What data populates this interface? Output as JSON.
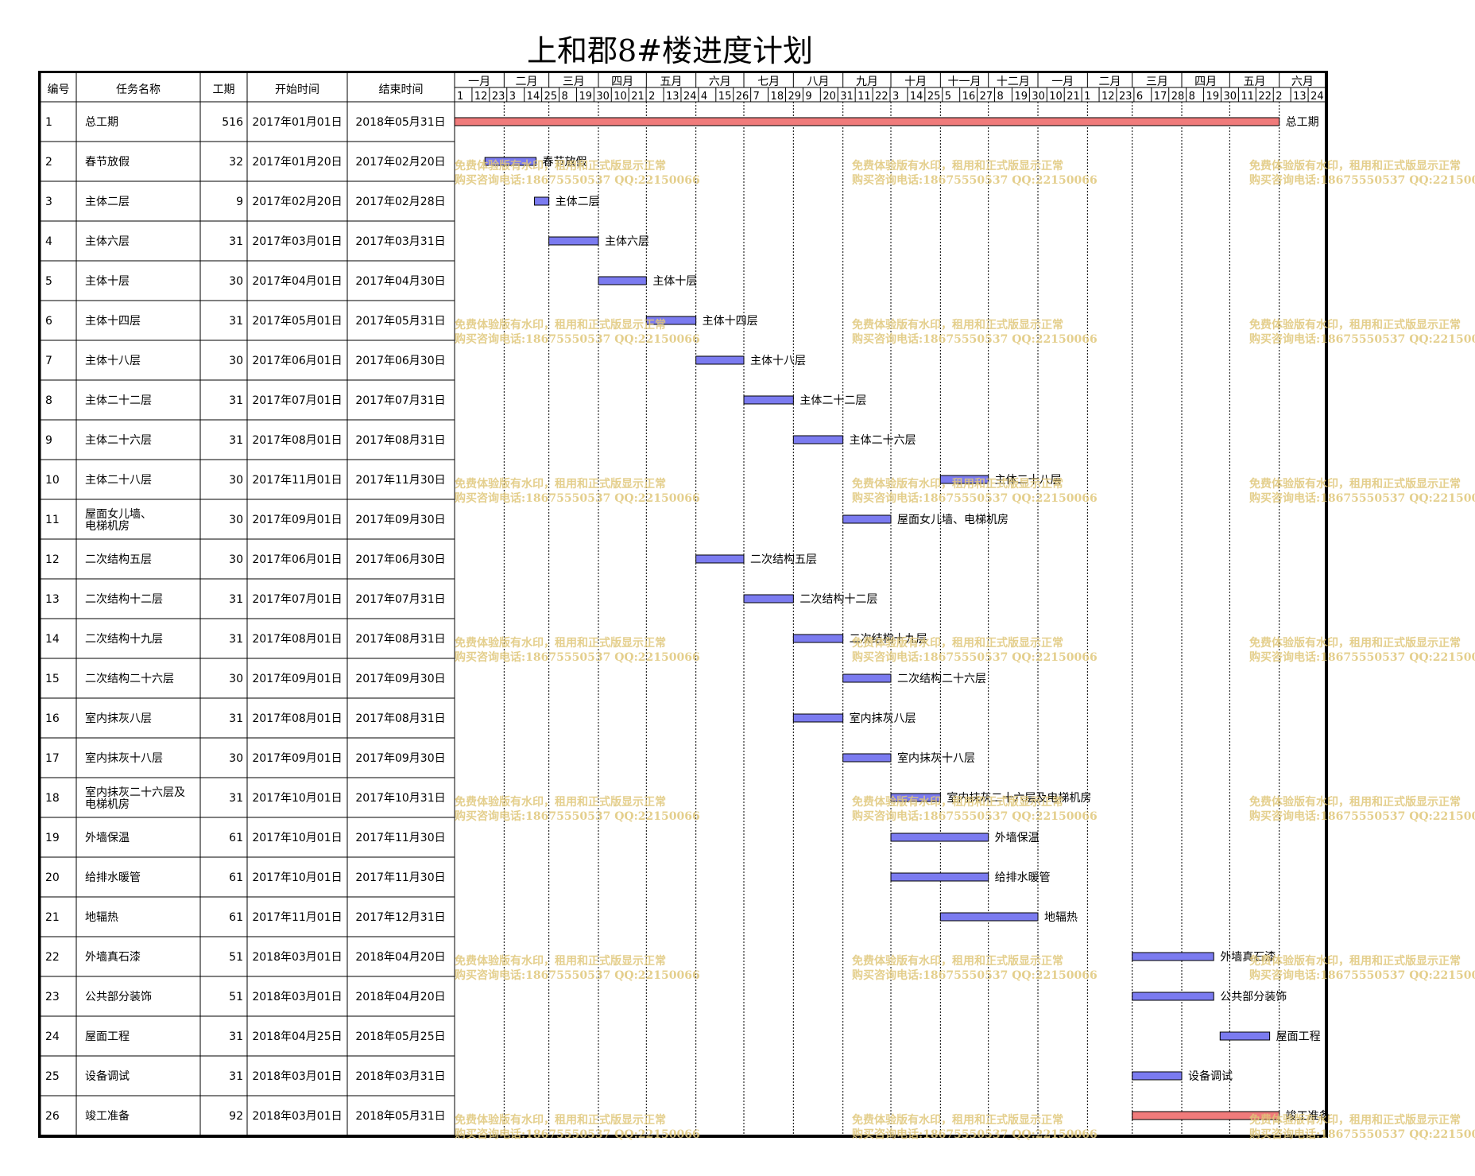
{
  "title": "上和郡8#楼进度计划",
  "table_headers": {
    "id": "编号",
    "name": "任务名称",
    "duration": "工期",
    "start": "开始时间",
    "end": "结束时间"
  },
  "timeline": {
    "months": [
      "一月",
      "二月",
      "三月",
      "四月",
      "五月",
      "六月",
      "七月",
      "八月",
      "九月",
      "十月",
      "十一月",
      "十二月",
      "一月",
      "二月",
      "三月",
      "四月",
      "五月",
      "六月"
    ],
    "month_starts": [
      "2017-01-01",
      "2017-02-01",
      "2017-03-01",
      "2017-04-01",
      "2017-05-01",
      "2017-06-01",
      "2017-07-01",
      "2017-08-01",
      "2017-09-01",
      "2017-10-01",
      "2017-11-01",
      "2017-12-01",
      "2018-01-01",
      "2018-02-01",
      "2018-03-01",
      "2018-04-01",
      "2018-05-01",
      "2018-06-01"
    ],
    "day_ticks": [
      "1",
      "12",
      "23",
      "3",
      "14",
      "25",
      "8",
      "19",
      "30",
      "10",
      "21",
      "2",
      "13",
      "24",
      "4",
      "15",
      "26",
      "7",
      "18",
      "29",
      "9",
      "20",
      "31",
      "11",
      "22",
      "3",
      "14",
      "25",
      "5",
      "16",
      "27",
      "8",
      "19",
      "30",
      "10",
      "21",
      "1",
      "12",
      "23",
      "6",
      "17",
      "28",
      "8",
      "19",
      "30",
      "11",
      "22",
      "2",
      "13",
      "24"
    ],
    "range": [
      "2017-01-01",
      "2018-06-30"
    ]
  },
  "watermark": {
    "line1": "免费体验版有水印，租用和正式版显示正常",
    "line2": "购买咨询电话:18675550537 QQ:22150066"
  },
  "colors": {
    "normal_bar": "#7b7bf0",
    "critical_bar": "#f07b7b",
    "grid": "#000000",
    "watermark": "#e0c77a"
  },
  "chart_data": {
    "type": "gantt",
    "tasks": [
      {
        "id": "1",
        "name": "总工期",
        "duration": "516",
        "start": "2017年01月01日",
        "end": "2018年05月31日",
        "s": "2017-01-01",
        "e": "2018-05-31",
        "critical": true
      },
      {
        "id": "2",
        "name": "春节放假",
        "duration": "32",
        "start": "2017年01月20日",
        "end": "2017年02月20日",
        "s": "2017-01-20",
        "e": "2017-02-20",
        "critical": false
      },
      {
        "id": "3",
        "name": "主体二层",
        "duration": "9",
        "start": "2017年02月20日",
        "end": "2017年02月28日",
        "s": "2017-02-20",
        "e": "2017-02-28",
        "critical": false
      },
      {
        "id": "4",
        "name": "主体六层",
        "duration": "31",
        "start": "2017年03月01日",
        "end": "2017年03月31日",
        "s": "2017-03-01",
        "e": "2017-03-31",
        "critical": false
      },
      {
        "id": "5",
        "name": "主体十层",
        "duration": "30",
        "start": "2017年04月01日",
        "end": "2017年04月30日",
        "s": "2017-04-01",
        "e": "2017-04-30",
        "critical": false
      },
      {
        "id": "6",
        "name": "主体十四层",
        "duration": "31",
        "start": "2017年05月01日",
        "end": "2017年05月31日",
        "s": "2017-05-01",
        "e": "2017-05-31",
        "critical": false
      },
      {
        "id": "7",
        "name": "主体十八层",
        "duration": "30",
        "start": "2017年06月01日",
        "end": "2017年06月30日",
        "s": "2017-06-01",
        "e": "2017-06-30",
        "critical": false
      },
      {
        "id": "8",
        "name": "主体二十二层",
        "duration": "31",
        "start": "2017年07月01日",
        "end": "2017年07月31日",
        "s": "2017-07-01",
        "e": "2017-07-31",
        "critical": false
      },
      {
        "id": "9",
        "name": "主体二十六层",
        "duration": "31",
        "start": "2017年08月01日",
        "end": "2017年08月31日",
        "s": "2017-08-01",
        "e": "2017-08-31",
        "critical": false
      },
      {
        "id": "10",
        "name": "主体二十八层",
        "duration": "30",
        "start": "2017年11月01日",
        "end": "2017年11月30日",
        "s": "2017-11-01",
        "e": "2017-11-30",
        "critical": false
      },
      {
        "id": "11",
        "name": "屋面女儿墙、电梯机房",
        "duration": "30",
        "start": "2017年09月01日",
        "end": "2017年09月30日",
        "s": "2017-09-01",
        "e": "2017-09-30",
        "critical": false
      },
      {
        "id": "12",
        "name": "二次结构五层",
        "duration": "30",
        "start": "2017年06月01日",
        "end": "2017年06月30日",
        "s": "2017-06-01",
        "e": "2017-06-30",
        "critical": false
      },
      {
        "id": "13",
        "name": "二次结构十二层",
        "duration": "31",
        "start": "2017年07月01日",
        "end": "2017年07月31日",
        "s": "2017-07-01",
        "e": "2017-07-31",
        "critical": false
      },
      {
        "id": "14",
        "name": "二次结构十九层",
        "duration": "31",
        "start": "2017年08月01日",
        "end": "2017年08月31日",
        "s": "2017-08-01",
        "e": "2017-08-31",
        "critical": false
      },
      {
        "id": "15",
        "name": "二次结构二十六层",
        "duration": "30",
        "start": "2017年09月01日",
        "end": "2017年09月30日",
        "s": "2017-09-01",
        "e": "2017-09-30",
        "critical": false
      },
      {
        "id": "16",
        "name": "室内抹灰八层",
        "duration": "31",
        "start": "2017年08月01日",
        "end": "2017年08月31日",
        "s": "2017-08-01",
        "e": "2017-08-31",
        "critical": false
      },
      {
        "id": "17",
        "name": "室内抹灰十八层",
        "duration": "30",
        "start": "2017年09月01日",
        "end": "2017年09月30日",
        "s": "2017-09-01",
        "e": "2017-09-30",
        "critical": false
      },
      {
        "id": "18",
        "name": "室内抹灰二十六层及电梯机房",
        "duration": "31",
        "start": "2017年10月01日",
        "end": "2017年10月31日",
        "s": "2017-10-01",
        "e": "2017-10-31",
        "critical": false
      },
      {
        "id": "19",
        "name": "外墙保温",
        "duration": "61",
        "start": "2017年10月01日",
        "end": "2017年11月30日",
        "s": "2017-10-01",
        "e": "2017-11-30",
        "critical": false
      },
      {
        "id": "20",
        "name": "给排水暖管",
        "duration": "61",
        "start": "2017年10月01日",
        "end": "2017年11月30日",
        "s": "2017-10-01",
        "e": "2017-11-30",
        "critical": false
      },
      {
        "id": "21",
        "name": "地辐热",
        "duration": "61",
        "start": "2017年11月01日",
        "end": "2017年12月31日",
        "s": "2017-11-01",
        "e": "2017-12-31",
        "critical": false
      },
      {
        "id": "22",
        "name": "外墙真石漆",
        "duration": "51",
        "start": "2018年03月01日",
        "end": "2018年04月20日",
        "s": "2018-03-01",
        "e": "2018-04-20",
        "critical": false
      },
      {
        "id": "23",
        "name": "公共部分装饰",
        "duration": "51",
        "start": "2018年03月01日",
        "end": "2018年04月20日",
        "s": "2018-03-01",
        "e": "2018-04-20",
        "critical": false
      },
      {
        "id": "24",
        "name": "屋面工程",
        "duration": "31",
        "start": "2018年04月25日",
        "end": "2018年05月25日",
        "s": "2018-04-25",
        "e": "2018-05-25",
        "critical": false
      },
      {
        "id": "25",
        "name": "设备调试",
        "duration": "31",
        "start": "2018年03月01日",
        "end": "2018年03月31日",
        "s": "2018-03-01",
        "e": "2018-03-31",
        "critical": false
      },
      {
        "id": "26",
        "name": "竣工准备",
        "duration": "92",
        "start": "2018年03月01日",
        "end": "2018年05月31日",
        "s": "2018-03-01",
        "e": "2018-05-31",
        "critical": true
      }
    ]
  }
}
